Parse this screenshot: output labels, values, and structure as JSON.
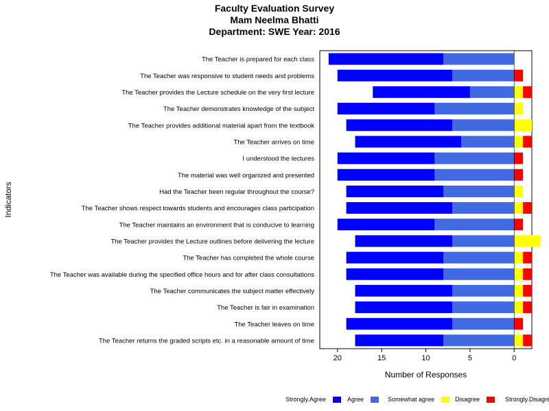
{
  "chart_data": {
    "type": "bar",
    "orientation": "horizontal",
    "stacked": "diverging",
    "title_lines": [
      "Faculty Evaluation Survey",
      "Mam Neelma Bhatti",
      "Department: SWE Year: 2016"
    ],
    "xlabel": "Number of Responses",
    "ylabel": "Indicators",
    "xlim": [
      22,
      -2
    ],
    "x_reversed": true,
    "xticks": [
      20,
      15,
      10,
      5,
      0
    ],
    "legend_position": "bottom",
    "grid": false,
    "categories": [
      "The Teacher is prepared for each class",
      "The Teacher was responsive to student needs and problems",
      "The Teacher provides the Lecture schedule on the very first lecture",
      "The Teacher demonstrates knowledge of the subject",
      "The Teacher provides additional material apart from the textbook",
      "The Teacher arrives on time",
      "I understood the lectures",
      "The material was well organized and presented",
      "Had the Teacher been regular throughout the course?",
      "The Teacher shows respect towards students and encourages class participation",
      "The Teacher maintains an environment that is conducive to learning",
      "The Teacher provides the Lecture outlines before delivering the lecture",
      "The Teacher has completed the whole course",
      "The Teacher was available during the specified office hours and for after class consultations",
      "The Teacher communicates the subject matter effectively",
      "The Teacher is fair in examination",
      "The Teacher leaves on time",
      "The Teacher returns the graded scripts etc. in  a reasonable amount of time"
    ],
    "series": [
      {
        "name": "Strongly.Agree",
        "color": "#0000ff",
        "values": [
          13,
          13,
          11,
          11,
          12,
          12,
          11,
          11,
          11,
          12,
          11,
          11,
          11,
          11,
          11,
          11,
          12,
          10
        ]
      },
      {
        "name": "Agree",
        "color": "#4169e1",
        "values": [
          8,
          7,
          5,
          9,
          7,
          6,
          9,
          9,
          8,
          7,
          9,
          7,
          8,
          8,
          7,
          7,
          7,
          8
        ]
      },
      {
        "name": "Somewhat agree",
        "color": "#ffff00",
        "values": [
          0,
          0,
          1,
          1,
          2,
          1,
          0,
          0,
          1,
          1,
          0,
          3,
          1,
          1,
          1,
          1,
          0,
          1
        ]
      },
      {
        "name": "Disagree",
        "color": "#ff0000",
        "values": [
          0,
          1,
          1,
          0,
          0,
          1,
          1,
          1,
          0,
          1,
          1,
          0,
          1,
          1,
          1,
          1,
          1,
          1
        ]
      },
      {
        "name": "Strongly.Disagree",
        "color": "#ff0000",
        "values": [
          0,
          0,
          0,
          0,
          0,
          0,
          0,
          0,
          0,
          0,
          0,
          0,
          0,
          0,
          0,
          0,
          0,
          0
        ]
      }
    ]
  }
}
